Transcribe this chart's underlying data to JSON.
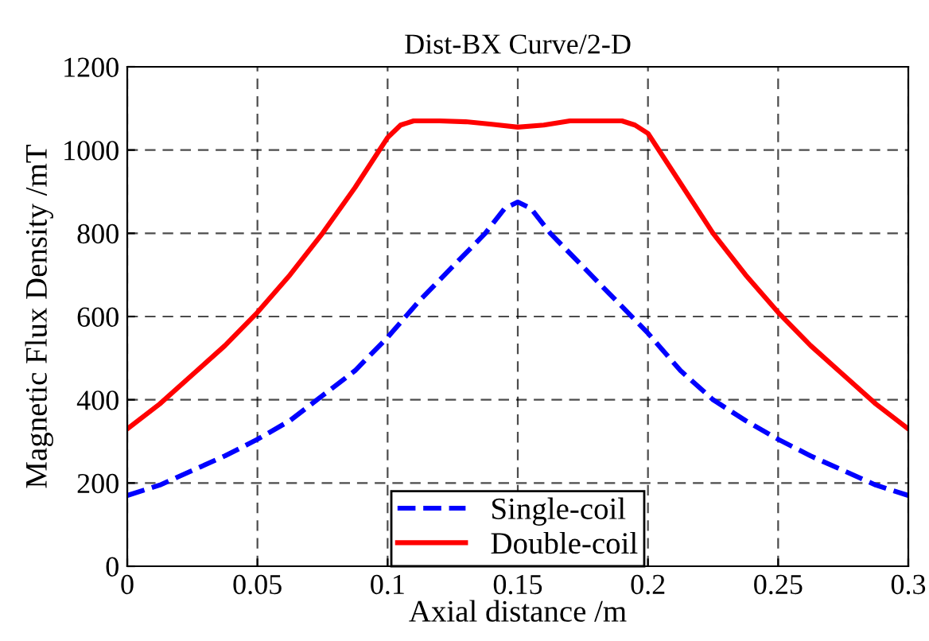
{
  "chart_data": {
    "type": "line",
    "title": "Dist-BX Curve/2-D",
    "xlabel": "Axial distance /m",
    "ylabel": "Magnetic Flux Density /mT",
    "xlim": [
      0,
      0.3
    ],
    "xticks": [
      0,
      0.05,
      0.1,
      0.15,
      0.2,
      0.25,
      0.3
    ],
    "ylim": [
      0,
      1200
    ],
    "yticks": [
      0,
      200,
      400,
      600,
      800,
      1000,
      1200
    ],
    "grid": true,
    "legend": "bottom",
    "marker": "none",
    "series": [
      {
        "name": "Single-coil",
        "color": "#0000ff",
        "line_style": "dashed",
        "x": [
          0,
          0.0125,
          0.025,
          0.0375,
          0.05,
          0.0625,
          0.075,
          0.0875,
          0.1,
          0.1125,
          0.125,
          0.1375,
          0.145,
          0.15,
          0.155,
          0.1625,
          0.175,
          0.1875,
          0.2,
          0.2125,
          0.225,
          0.2375,
          0.25,
          0.2625,
          0.275,
          0.2875,
          0.3
        ],
        "values": [
          170,
          195,
          230,
          265,
          305,
          350,
          410,
          470,
          550,
          640,
          720,
          800,
          860,
          875,
          860,
          800,
          720,
          640,
          560,
          470,
          400,
          350,
          305,
          265,
          230,
          195,
          170
        ]
      },
      {
        "name": "Double-coil",
        "color": "#ff0000",
        "line_style": "solid",
        "x": [
          0,
          0.0125,
          0.025,
          0.0375,
          0.05,
          0.0625,
          0.075,
          0.0875,
          0.1,
          0.105,
          0.11,
          0.12,
          0.13,
          0.14,
          0.15,
          0.16,
          0.17,
          0.18,
          0.19,
          0.195,
          0.2,
          0.2125,
          0.225,
          0.2375,
          0.25,
          0.2625,
          0.275,
          0.2875,
          0.3
        ],
        "values": [
          330,
          390,
          460,
          530,
          610,
          700,
          800,
          910,
          1030,
          1060,
          1070,
          1070,
          1068,
          1062,
          1055,
          1060,
          1070,
          1070,
          1070,
          1060,
          1040,
          920,
          800,
          700,
          610,
          530,
          460,
          390,
          330
        ]
      }
    ]
  }
}
